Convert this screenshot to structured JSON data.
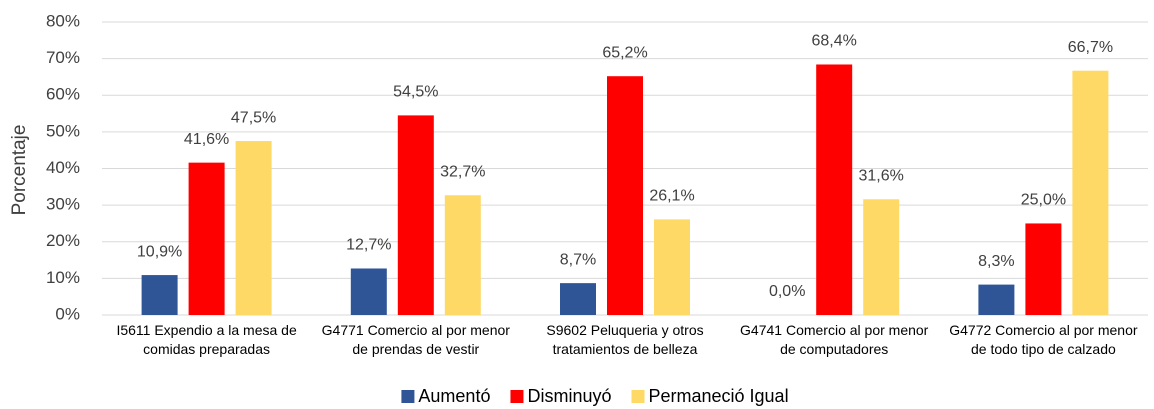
{
  "chart_data": {
    "type": "bar",
    "ylabel": "Porcentaje",
    "categories": [
      "I5611 Expendio a la mesa de comidas preparadas",
      "G4771 Comercio al por menor de prendas de vestir",
      "S9602 Peluqueria y otros tratamientos de belleza",
      "G4741 Comercio al por menor de computadores",
      "G4772 Comercio al por menor de todo tipo de calzado"
    ],
    "series": [
      {
        "name": "Aumentó",
        "color": "#2f5597",
        "values": [
          10.9,
          12.7,
          8.7,
          0.0,
          8.3
        ],
        "value_labels": [
          "10,9%",
          "12,7%",
          "8,7%",
          "0,0%",
          "8,3%"
        ]
      },
      {
        "name": "Disminuyó",
        "color": "#ff0000",
        "values": [
          41.6,
          54.5,
          65.2,
          68.4,
          25.0
        ],
        "value_labels": [
          "41,6%",
          "54,5%",
          "65,2%",
          "68,4%",
          "25,0%"
        ]
      },
      {
        "name": "Permaneció Igual",
        "color": "#ffd966",
        "values": [
          47.5,
          32.7,
          26.1,
          31.6,
          66.7
        ],
        "value_labels": [
          "47,5%",
          "32,7%",
          "26,1%",
          "31,6%",
          "66,7%"
        ]
      }
    ],
    "ylim": [
      0,
      80
    ],
    "yticks": [
      {
        "value": 0,
        "label": "0%"
      },
      {
        "value": 10,
        "label": "10%"
      },
      {
        "value": 20,
        "label": "20%"
      },
      {
        "value": 30,
        "label": "30%"
      },
      {
        "value": 40,
        "label": "40%"
      },
      {
        "value": 50,
        "label": "50%"
      },
      {
        "value": 60,
        "label": "60%"
      },
      {
        "value": 70,
        "label": "70%"
      },
      {
        "value": 80,
        "label": "80%"
      }
    ],
    "grid": true,
    "legend": "bottom"
  }
}
